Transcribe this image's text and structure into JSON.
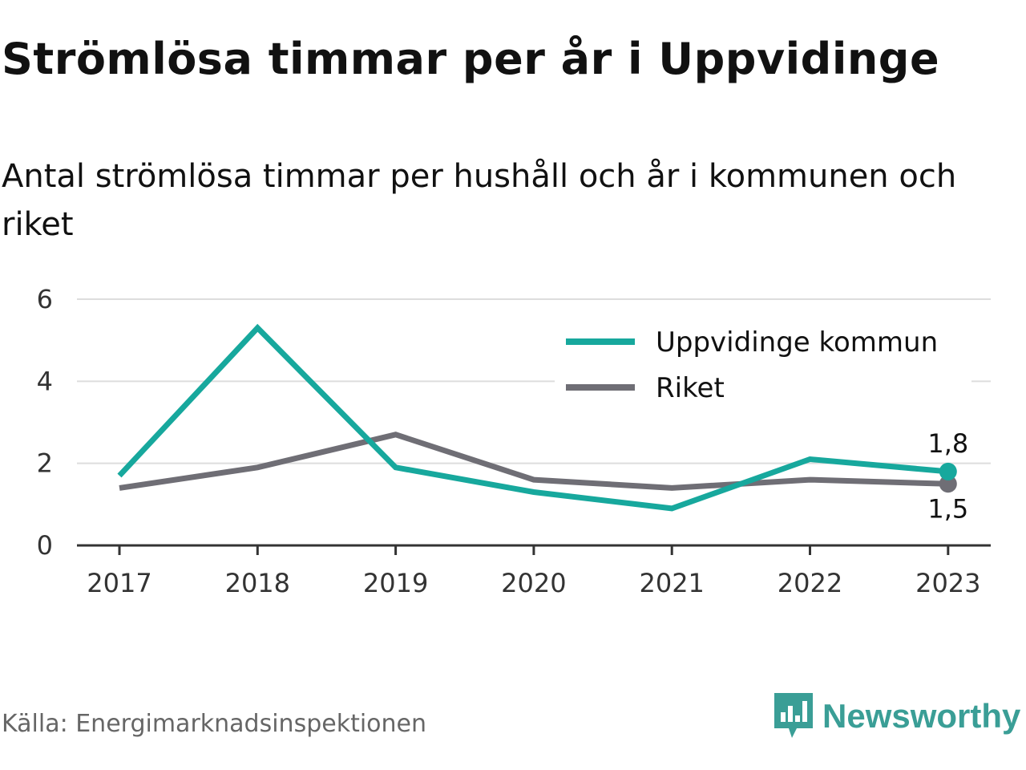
{
  "title": "Strömlösa timmar per år i Uppvidinge",
  "subtitle": "Antal strömlösa timmar per hushåll och år i kommunen och riket",
  "source": "Källa: Energimarknadsinspektionen",
  "brand": {
    "name": "Newsworthy",
    "logo_icon": "newsworthy-bar-chart-logo-icon"
  },
  "colors": {
    "kommun": "#17a89d",
    "riket": "#6f6e75",
    "grid": "#dddddd",
    "axis": "#333333",
    "brand": "#3a9e96"
  },
  "chart_data": {
    "type": "line",
    "categories": [
      "2017",
      "2018",
      "2019",
      "2020",
      "2021",
      "2022",
      "2023"
    ],
    "series": [
      {
        "name": "Uppvidinge kommun",
        "color": "#17a89d",
        "values": [
          1.7,
          5.3,
          1.9,
          1.3,
          0.9,
          2.1,
          1.8
        ]
      },
      {
        "name": "Riket",
        "color": "#6f6e75",
        "values": [
          1.4,
          1.9,
          2.7,
          1.6,
          1.4,
          1.6,
          1.5
        ]
      }
    ],
    "end_labels": [
      "1,8",
      "1,5"
    ],
    "y_ticks": [
      "0",
      "2",
      "4",
      "6"
    ],
    "ylim": [
      0,
      6
    ],
    "grid": true,
    "legend_position": "top-right",
    "xlabel": "",
    "ylabel": ""
  }
}
